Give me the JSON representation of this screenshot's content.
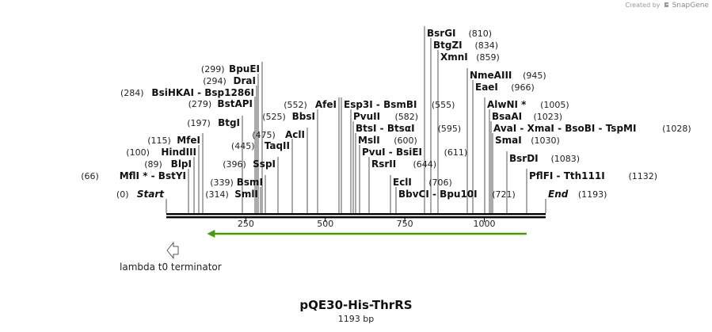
{
  "watermark": {
    "created_by": "Created by",
    "brand": "SnapGene"
  },
  "map": {
    "name": "pQE30-His-ThrRS",
    "length_label": "1193 bp",
    "length_bp": 1193,
    "ticks": [
      "250",
      "500",
      "750",
      "1000"
    ],
    "tick_values": [
      250,
      500,
      750,
      1000
    ],
    "feature": {
      "name": "lambda t0 terminator",
      "direction": "reverse"
    },
    "orf": {
      "start": 108,
      "end": 1133,
      "direction": "reverse",
      "color": "#4a9a10"
    }
  },
  "sites": [
    {
      "pos": 0,
      "pos_label": "(0)",
      "name": "Start",
      "kind": "start",
      "anchor": "right"
    },
    {
      "pos": 66,
      "pos_label": "(66)",
      "name": "MflI * - BstYI",
      "anchor": "right"
    },
    {
      "pos": 89,
      "pos_label": "(89)",
      "name": "BlpI",
      "anchor": "right"
    },
    {
      "pos": 100,
      "pos_label": "(100)",
      "name": "HindIII",
      "anchor": "right"
    },
    {
      "pos": 115,
      "pos_label": "(115)",
      "name": "MfeI",
      "anchor": "right"
    },
    {
      "pos": 197,
      "pos_label": "(197)",
      "name": "BtgI",
      "anchor": "right"
    },
    {
      "pos": 279,
      "pos_label": "(279)",
      "name": "BstAPI",
      "anchor": "right"
    },
    {
      "pos": 284,
      "pos_label": "(284)",
      "name": "BsiHKAI - Bsp1286I",
      "anchor": "right"
    },
    {
      "pos": 294,
      "pos_label": "(294)",
      "name": "DraI",
      "anchor": "right"
    },
    {
      "pos": 299,
      "pos_label": "(299)",
      "name": "BpuEI",
      "anchor": "right"
    },
    {
      "pos": 314,
      "pos_label": "(314)",
      "name": "SmlI",
      "anchor": "right"
    },
    {
      "pos": 339,
      "pos_label": "(339)",
      "name": "BsmI",
      "anchor": "right"
    },
    {
      "pos": 396,
      "pos_label": "(396)",
      "name": "SspI",
      "anchor": "right"
    },
    {
      "pos": 445,
      "pos_label": "(445)",
      "name": "TaqII",
      "anchor": "right"
    },
    {
      "pos": 475,
      "pos_label": "(475)",
      "name": "AclI",
      "anchor": "right"
    },
    {
      "pos": 525,
      "pos_label": "(525)",
      "name": "BbsI",
      "anchor": "right"
    },
    {
      "pos": 552,
      "pos_label": "(552)",
      "name": "AfeI",
      "anchor": "right"
    },
    {
      "pos": 555,
      "pos_label": "(555)",
      "name": "Esp3I - BsmBI",
      "anchor": "left"
    },
    {
      "pos": 582,
      "pos_label": "(582)",
      "name": "PvuII",
      "anchor": "left"
    },
    {
      "pos": 595,
      "pos_label": "(595)",
      "name": "BtsI - BtsαI",
      "anchor": "left"
    },
    {
      "pos": 600,
      "pos_label": "(600)",
      "name": "MslI",
      "anchor": "left"
    },
    {
      "pos": 611,
      "pos_label": "(611)",
      "name": "PvuI - BsiEI",
      "anchor": "left"
    },
    {
      "pos": 644,
      "pos_label": "(644)",
      "name": "RsrII",
      "anchor": "left"
    },
    {
      "pos": 706,
      "pos_label": "(706)",
      "name": "EclI",
      "anchor": "left"
    },
    {
      "pos": 721,
      "pos_label": "(721)",
      "name": "BbvCI - Bpu10I",
      "anchor": "left"
    },
    {
      "pos": 810,
      "pos_label": "(810)",
      "name": "BsrGI",
      "anchor": "left"
    },
    {
      "pos": 834,
      "pos_label": "(834)",
      "name": "BtgZI",
      "anchor": "left"
    },
    {
      "pos": 859,
      "pos_label": "(859)",
      "name": "XmnI",
      "anchor": "left"
    },
    {
      "pos": 945,
      "pos_label": "(945)",
      "name": "NmeAIII",
      "anchor": "left"
    },
    {
      "pos": 966,
      "pos_label": "(966)",
      "name": "EaeI",
      "anchor": "left"
    },
    {
      "pos": 1005,
      "pos_label": "(1005)",
      "name": "AlwNI *",
      "anchor": "left"
    },
    {
      "pos": 1023,
      "pos_label": "(1023)",
      "name": "BsaAI",
      "anchor": "left"
    },
    {
      "pos": 1028,
      "pos_label": "(1028)",
      "name": "AvaI - XmaI - BsoBI - TspMI",
      "anchor": "left"
    },
    {
      "pos": 1030,
      "pos_label": "(1030)",
      "name": "SmaI",
      "anchor": "left"
    },
    {
      "pos": 1083,
      "pos_label": "(1083)",
      "name": "BsrDI",
      "anchor": "left"
    },
    {
      "pos": 1132,
      "pos_label": "(1132)",
      "name": "PflFI - Tth111I",
      "anchor": "left"
    },
    {
      "pos": 1193,
      "pos_label": "(1193)",
      "name": "End",
      "kind": "end",
      "anchor": "left"
    }
  ]
}
